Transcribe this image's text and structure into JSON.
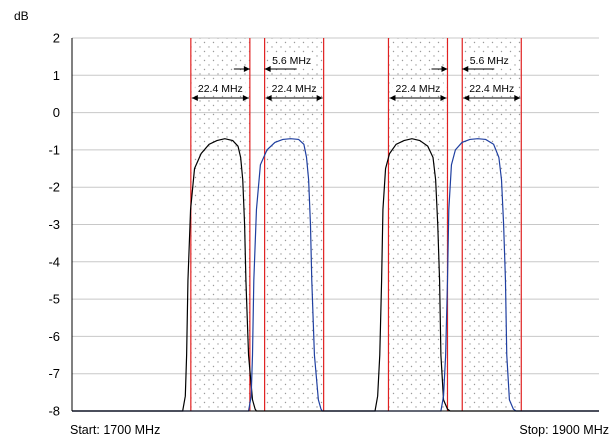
{
  "chart_data": {
    "type": "line",
    "ylabel": "dB",
    "ylim": [
      -8,
      2
    ],
    "yticks": [
      2,
      1,
      0,
      -1,
      -2,
      -3,
      -4,
      -5,
      -6,
      -7,
      -8
    ],
    "xlim": [
      1700,
      1900
    ],
    "x_start_label": "Start: 1700 MHz",
    "x_stop_label": "Stop: 1900 MHz",
    "grid": "horizontal",
    "colors": {
      "series_a": "#000000",
      "series_b": "#1f3fa0",
      "band_edge": "#e02020",
      "dots": "#9a9a9a",
      "axis": "#000000",
      "grid": "#c8c8c8"
    },
    "series": [
      {
        "color_key": "series_a",
        "x": [
          1700,
          1742,
          1743,
          1743.5,
          1744,
          1745,
          1746.5,
          1749,
          1752,
          1755,
          1758,
          1761,
          1763,
          1764,
          1764.8,
          1765.5,
          1766,
          1767,
          1768.5,
          1769.5,
          1770,
          1815,
          1816,
          1816.8,
          1817.5,
          1818,
          1819,
          1820.5,
          1823,
          1826,
          1829,
          1832,
          1835,
          1837,
          1838,
          1838.8,
          1839.5,
          1840,
          1841,
          1842.5,
          1843.5,
          1844,
          1900
        ],
        "y": [
          -8,
          -8,
          -7.6,
          -6.5,
          -4.5,
          -2.6,
          -1.5,
          -1.1,
          -0.85,
          -0.75,
          -0.7,
          -0.75,
          -0.9,
          -1.2,
          -1.8,
          -3,
          -4.5,
          -6.5,
          -7.7,
          -7.95,
          -8,
          -8,
          -7.6,
          -6.5,
          -4.5,
          -2.6,
          -1.5,
          -1.1,
          -0.85,
          -0.75,
          -0.7,
          -0.75,
          -0.9,
          -1.2,
          -1.8,
          -3,
          -4.5,
          -6.5,
          -7.7,
          -7.95,
          -8,
          -8,
          -8
        ]
      },
      {
        "color_key": "series_b",
        "x": [
          1700,
          1767,
          1768,
          1768.5,
          1769,
          1770,
          1771.5,
          1774,
          1777,
          1780,
          1783,
          1786,
          1788,
          1789,
          1789.8,
          1790.5,
          1791,
          1792,
          1793.5,
          1794.5,
          1795,
          1840,
          1841,
          1841.8,
          1842.5,
          1843,
          1844,
          1845.5,
          1848,
          1851,
          1854,
          1857,
          1860,
          1862,
          1863,
          1863.8,
          1864.5,
          1865,
          1866,
          1867.5,
          1868.5,
          1869,
          1900
        ],
        "y": [
          -8,
          -8,
          -7.6,
          -6.5,
          -4.5,
          -2.6,
          -1.4,
          -1.0,
          -0.8,
          -0.72,
          -0.7,
          -0.72,
          -0.85,
          -1.2,
          -1.8,
          -3,
          -4.5,
          -6.5,
          -7.7,
          -7.95,
          -8,
          -8,
          -7.6,
          -6.5,
          -4.5,
          -2.6,
          -1.4,
          -1.0,
          -0.8,
          -0.72,
          -0.7,
          -0.72,
          -0.85,
          -1.2,
          -1.8,
          -3,
          -4.5,
          -6.5,
          -7.7,
          -7.95,
          -8,
          -8,
          -8
        ]
      }
    ],
    "bands": [
      {
        "x0": 1745.1,
        "x1": 1767.5
      },
      {
        "x0": 1773.1,
        "x1": 1795.5
      },
      {
        "x0": 1820.1,
        "x1": 1842.5
      },
      {
        "x0": 1848.1,
        "x1": 1870.5
      }
    ],
    "band_width_label": "22.4 MHz",
    "gap_label": "5.6 MHz"
  }
}
